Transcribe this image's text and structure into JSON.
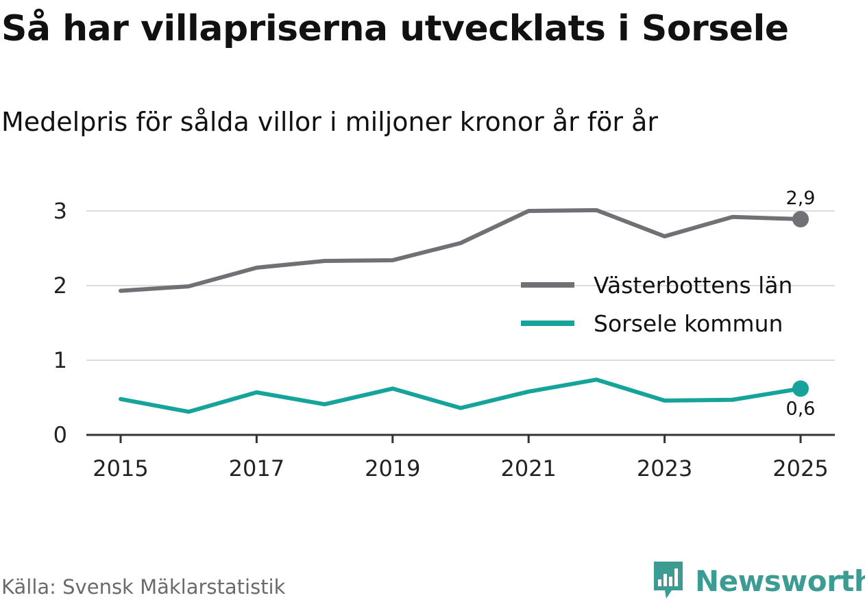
{
  "chart_data": {
    "type": "line",
    "title": "Så har villapriserna utvecklats i Sorsele",
    "subtitle": "Medelpris för sålda villor i miljoner kronor år för år",
    "x": [
      2015,
      2016,
      2017,
      2018,
      2019,
      2020,
      2021,
      2022,
      2023,
      2024,
      2025
    ],
    "x_ticks": [
      "2015",
      "2017",
      "2019",
      "2021",
      "2023",
      "2025"
    ],
    "y_ticks": [
      "0",
      "1",
      "2",
      "3"
    ],
    "ylim": [
      0,
      3.4
    ],
    "grid": true,
    "legend_position": "right",
    "series": [
      {
        "name": "Västerbottens län",
        "color": "#707075",
        "values": [
          1.93,
          1.99,
          2.24,
          2.33,
          2.34,
          2.57,
          3.0,
          3.01,
          2.66,
          2.92,
          2.89
        ],
        "end_label": "2,9"
      },
      {
        "name": "Sorsele kommun",
        "color": "#16a39b",
        "values": [
          0.48,
          0.31,
          0.57,
          0.41,
          0.62,
          0.36,
          0.58,
          0.74,
          0.46,
          0.47,
          0.62
        ],
        "end_label": "0,6"
      }
    ]
  },
  "footer": {
    "source": "Källa: Svensk Mäklarstatistik",
    "brand": "Newsworthy",
    "brand_color": "#3c9c94"
  }
}
